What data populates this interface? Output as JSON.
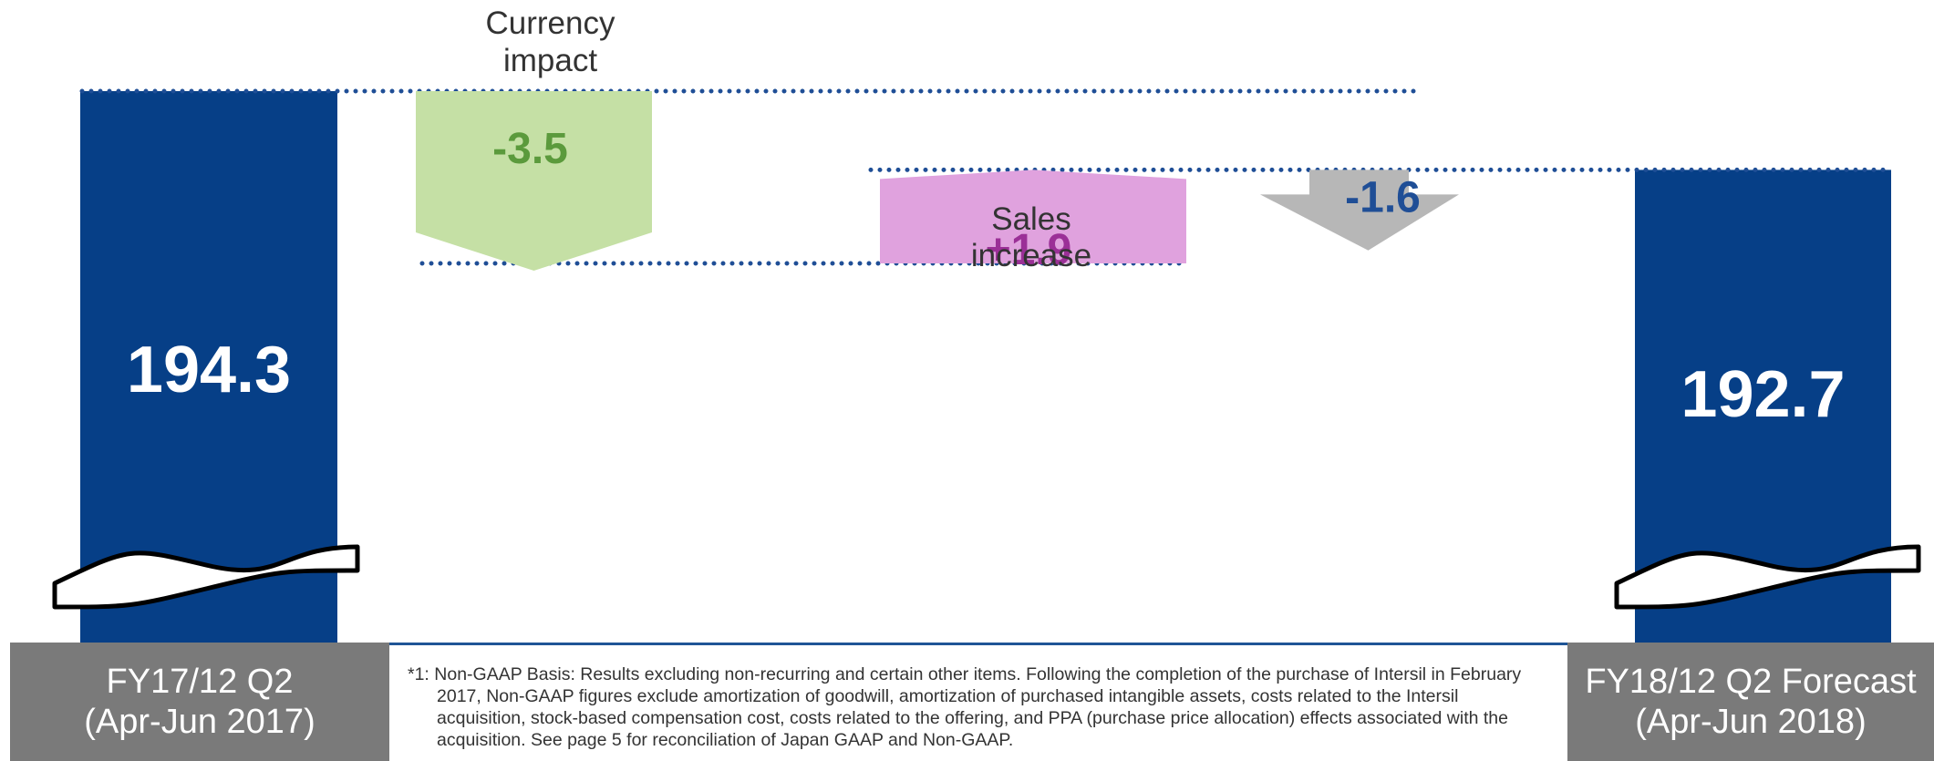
{
  "chart_data": {
    "type": "waterfall",
    "categories": [
      "FY17/12 Q2 (Apr-Jun 2017)",
      "Currency impact",
      "Sales increase",
      "",
      "FY18/12 Q2 Forecast (Apr-Jun 2018)"
    ],
    "start": {
      "value": 194.3,
      "value_label": "194.3",
      "label_line1": "FY17/12 Q2",
      "label_line2": "(Apr-Jun 2017)"
    },
    "steps": [
      {
        "label_line1": "Currency",
        "label_line2": "impact",
        "value": -3.5,
        "value_label": "-3.5",
        "color": "#c5e0a5",
        "text_color": "#5b9a3c"
      },
      {
        "label_line1": "Sales",
        "label_line2": "increase",
        "value": 1.9,
        "value_label": "+1.9",
        "color": "#e0a2de",
        "text_color": "#9b3097"
      },
      {
        "label_line1": "",
        "label_line2": "",
        "value": -1.6,
        "value_label": "-1.6",
        "color": "#b7b7b7",
        "text_color": "#1f4e96"
      }
    ],
    "end": {
      "value": 192.7,
      "value_label": "192.7",
      "label_line1": "FY18/12 Q2 Forecast",
      "label_line2": "(Apr-Jun 2018)"
    },
    "axis_break": true
  },
  "colors": {
    "total_bar": "#063f87",
    "dotted_line": "#1f4e96",
    "category_box": "#7a7a7a",
    "value_text": "#ffffff"
  },
  "footnote": "*1: Non-GAAP Basis: Results excluding non-recurring and certain other items. Following the completion of the purchase of Intersil in February 2017, Non-GAAP figures exclude amortization of goodwill, amortization of purchased intangible assets, costs related to the Intersil acquisition, stock-based compensation cost, costs related to the offering, and PPA (purchase price allocation) effects associated with the acquisition. See page 5 for reconciliation of Japan GAAP and Non-GAAP."
}
